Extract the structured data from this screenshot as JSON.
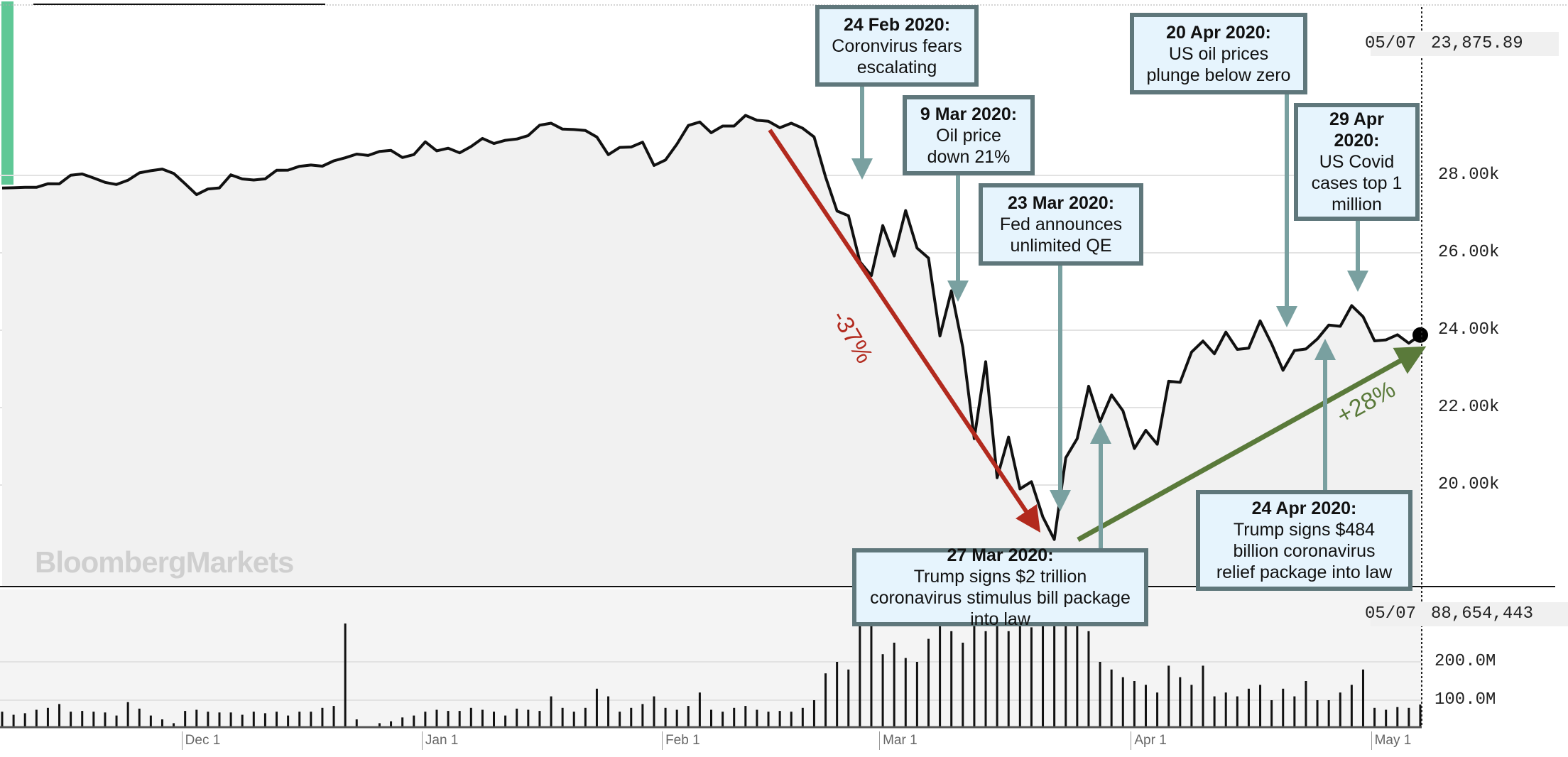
{
  "chart_data": {
    "type": "line",
    "title": "",
    "series": [
      {
        "name": "Price",
        "values": [
          27675,
          27681,
          27691,
          27691,
          27784,
          27782,
          28005,
          28036,
          27934,
          27821,
          27766,
          27876,
          28066,
          28121,
          28164,
          28051,
          27783,
          27502,
          27649,
          27677,
          28015,
          27909,
          27881,
          27911,
          28132,
          28135,
          28235,
          28267,
          28239,
          28376,
          28455,
          28551,
          28515,
          28621,
          28645,
          28462,
          28538,
          28868,
          28634,
          28703,
          28583,
          28745,
          28956,
          28823,
          28907,
          28940,
          29030,
          29297,
          29348,
          29196,
          29186,
          29160,
          28990,
          28535,
          28723,
          28734,
          28859,
          28256,
          28399,
          28807,
          29290,
          29379,
          29103,
          29276,
          29276,
          29551,
          29423,
          29398,
          29232,
          29348,
          29219,
          28992,
          27961,
          27081,
          26957,
          25767,
          25409,
          26703,
          25917,
          27091,
          26121,
          25865,
          23851,
          25018,
          23553,
          21200,
          23185,
          20189,
          21237,
          19899,
          20087,
          19174,
          18592,
          20705,
          21200,
          22552,
          21637,
          22327,
          21917,
          20944,
          21413,
          21053,
          22680,
          22654,
          23434,
          23719,
          23390,
          23950,
          23505,
          23538,
          24242,
          23650,
          22965,
          23475,
          23516,
          23775,
          24134,
          24101,
          24634,
          24346,
          23724,
          23750,
          23883,
          23665,
          23876
        ]
      },
      {
        "name": "Volume (M)",
        "values": [
          70,
          62,
          66,
          75,
          80,
          90,
          70,
          72,
          70,
          68,
          60,
          95,
          78,
          60,
          50,
          40,
          72,
          75,
          70,
          68,
          68,
          62,
          70,
          66,
          70,
          60,
          70,
          70,
          80,
          85,
          300,
          50,
          30,
          40,
          45,
          55,
          60,
          70,
          75,
          72,
          72,
          80,
          75,
          70,
          60,
          78,
          75,
          72,
          110,
          80,
          70,
          80,
          130,
          110,
          70,
          80,
          90,
          110,
          80,
          75,
          85,
          120,
          75,
          70,
          80,
          85,
          75,
          70,
          72,
          70,
          80,
          100,
          170,
          200,
          180,
          330,
          330,
          220,
          250,
          210,
          200,
          260,
          320,
          280,
          250,
          370,
          280,
          300,
          280,
          300,
          290,
          400,
          350,
          300,
          300,
          280,
          200,
          180,
          160,
          150,
          140,
          120,
          190,
          160,
          140,
          190,
          110,
          120,
          110,
          130,
          140,
          100,
          130,
          110,
          150,
          100,
          100,
          120,
          140,
          180,
          80,
          75,
          82,
          80,
          88.65
        ]
      }
    ],
    "price_ticks": [
      "28.00k",
      "26.00k",
      "24.00k",
      "22.00k",
      "20.00k"
    ],
    "price_tick_values": [
      28000,
      26000,
      24000,
      22000,
      20000
    ],
    "volume_ticks": [
      "200.0M",
      "100.0M"
    ],
    "volume_tick_values": [
      200,
      100
    ],
    "x_ticks": [
      "Dec 1",
      "Jan 1",
      "Feb 1",
      "Mar 1",
      "Apr 1",
      "May 1"
    ],
    "x_tick_index": [
      16,
      37,
      58,
      77,
      99,
      120
    ],
    "last_date": "05/07",
    "last_price": "23,875.89",
    "last_volume": "88,654,443",
    "watermark": "BloombergMarkets",
    "annotations": [
      {
        "date": "24 Feb 2020:",
        "text": "Coronvirus fears escalating"
      },
      {
        "date": "9 Mar 2020:",
        "text": "Oil price down 21%"
      },
      {
        "date": "23 Mar 2020:",
        "text": "Fed announces unlimited QE"
      },
      {
        "date": "20 Apr 2020:",
        "text": "US oil prices plunge below zero"
      },
      {
        "date": "29 Apr 2020:",
        "text": "US Covid cases top 1 million"
      },
      {
        "date": "27 Mar 2020:",
        "text": "Trump signs $2 trillion coronavirus stimulus bill package into law"
      },
      {
        "date": "24 Apr 2020:",
        "text": "Trump signs $484 billion coronavirus relief package into law"
      }
    ],
    "decline_label": "-37%",
    "rise_label": "+28%",
    "colors": {
      "decline": "#b22a1e",
      "rise": "#5a7a3a",
      "box_fill": "#e6f4fd",
      "box_border": "#5f777b",
      "pointer": "#79a0a0",
      "accent": "#5fc896"
    }
  }
}
